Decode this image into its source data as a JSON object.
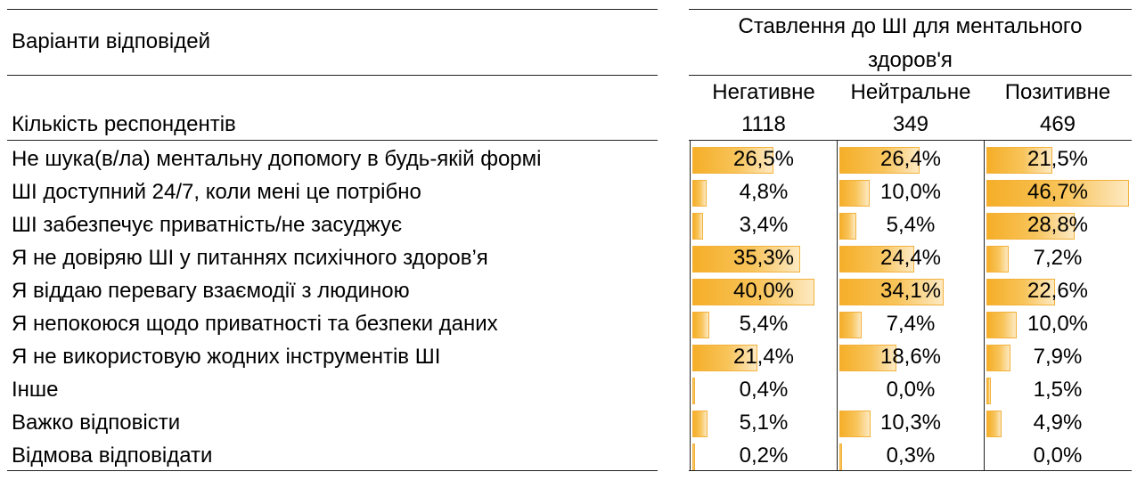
{
  "chart_data": {
    "type": "table",
    "row_header": "Варіанти відповідей",
    "count_label": "Кількість респондентів",
    "group_header": "Ставлення до ШІ для ментального здоров'я",
    "group_header_line1": "Ставлення до ШІ для ментального",
    "group_header_line2": "здоров'я",
    "columns": [
      {
        "name": "Негативне",
        "n": "1118"
      },
      {
        "name": "Нейтральне",
        "n": "349"
      },
      {
        "name": "Позитивне",
        "n": "469"
      }
    ],
    "rows": [
      {
        "label": "Не шука(в/ла) ментальну допомогу в будь-якій формі",
        "values": [
          26.5,
          26.4,
          21.5
        ],
        "labels": [
          "26,5%",
          "26,4%",
          "21,5%"
        ]
      },
      {
        "label": "ШІ доступний 24/7, коли мені це потрібно",
        "values": [
          4.8,
          10.0,
          46.7
        ],
        "labels": [
          "4,8%",
          "10,0%",
          "46,7%"
        ]
      },
      {
        "label": "ШІ забезпечує приватність/не засуджує",
        "values": [
          3.4,
          5.4,
          28.8
        ],
        "labels": [
          "3,4%",
          "5,4%",
          "28,8%"
        ]
      },
      {
        "label": "Я не довіряю ШІ у питаннях психічного здоров’я",
        "values": [
          35.3,
          24.4,
          7.2
        ],
        "labels": [
          "35,3%",
          "24,4%",
          "7,2%"
        ]
      },
      {
        "label": "Я віддаю перевагу взаємодії з людиною",
        "values": [
          40.0,
          34.1,
          22.6
        ],
        "labels": [
          "40,0%",
          "34,1%",
          "22,6%"
        ]
      },
      {
        "label": "Я непокоюся щодо приватності та безпеки даних",
        "values": [
          5.4,
          7.4,
          10.0
        ],
        "labels": [
          "5,4%",
          "7,4%",
          "10,0%"
        ]
      },
      {
        "label": "Я не використовую жодних інструментів ШІ",
        "values": [
          21.4,
          18.6,
          7.9
        ],
        "labels": [
          "21,4%",
          "18,6%",
          "7,9%"
        ]
      },
      {
        "label": "Інше",
        "values": [
          0.4,
          0.0,
          1.5
        ],
        "labels": [
          "0,4%",
          "0,0%",
          "1,5%"
        ]
      },
      {
        "label": "Важко відповісти",
        "values": [
          5.1,
          10.3,
          4.9
        ],
        "labels": [
          "5,1%",
          "10,3%",
          "4,9%"
        ]
      },
      {
        "label": "Відмова відповідати",
        "values": [
          0.2,
          0.3,
          0.0
        ],
        "labels": [
          "0,2%",
          "0,3%",
          "0,0%"
        ]
      }
    ],
    "bar_color": "#f5ae28"
  }
}
